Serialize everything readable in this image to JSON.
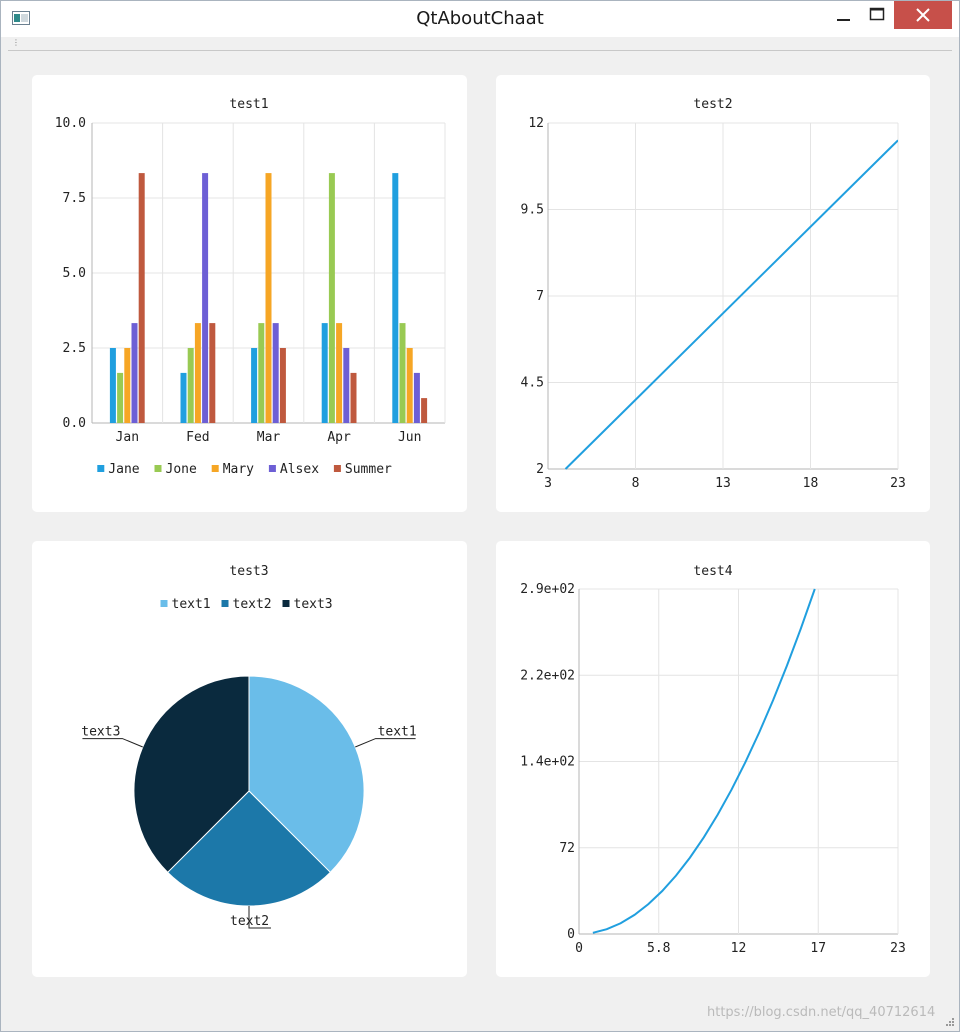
{
  "window": {
    "title": "QtAboutChaat",
    "watermark": "https://blog.csdn.net/qq_40712614"
  },
  "colors": {
    "series": [
      "#209fdf",
      "#99ca53",
      "#f6a625",
      "#6d5fd5",
      "#bf593e"
    ],
    "pie": [
      "#6abde9",
      "#1c78a9",
      "#0a2a3e"
    ],
    "line": "#209fdf",
    "close": "#c7504a"
  },
  "charts": [
    {
      "type": "bar",
      "title": "test1",
      "categories": [
        "Jan",
        "Fed",
        "Mar",
        "Apr",
        "Jun"
      ],
      "series": [
        {
          "name": "Jane",
          "values": [
            2.5,
            1.67,
            2.5,
            3.33,
            8.33
          ]
        },
        {
          "name": "Jone",
          "values": [
            1.67,
            2.5,
            3.33,
            8.33,
            3.33
          ]
        },
        {
          "name": "Mary",
          "values": [
            2.5,
            3.33,
            8.33,
            3.33,
            2.5
          ]
        },
        {
          "name": "Alsex",
          "values": [
            3.33,
            8.33,
            3.33,
            2.5,
            1.67
          ]
        },
        {
          "name": "Summer",
          "values": [
            8.33,
            3.33,
            2.5,
            1.67,
            0.83
          ]
        }
      ],
      "y_ticks": [
        "10.0",
        "7.5",
        "5.0",
        "2.5",
        "0.0"
      ],
      "ylim": [
        0,
        10
      ],
      "grid": true,
      "legend": "bottom"
    },
    {
      "type": "line",
      "title": "test2",
      "x": [
        4,
        23
      ],
      "y": [
        2,
        11.5
      ],
      "x_ticks": [
        "3",
        "8",
        "13",
        "18",
        "23"
      ],
      "y_ticks": [
        "12",
        "9.5",
        "7",
        "4.5",
        "2"
      ],
      "xlim": [
        3,
        23
      ],
      "ylim": [
        2,
        12
      ],
      "grid": true
    },
    {
      "type": "pie",
      "title": "test3",
      "slices": [
        {
          "label": "text1",
          "value": 0.375
        },
        {
          "label": "text2",
          "value": 0.25
        },
        {
          "label": "text3",
          "value": 0.375
        }
      ],
      "legend": "top"
    },
    {
      "type": "line",
      "title": "test4",
      "x": [
        1,
        2,
        3,
        4,
        5,
        6,
        7,
        8,
        9,
        10,
        11,
        12,
        13,
        14,
        15,
        16,
        17
      ],
      "y": [
        1,
        4,
        9,
        16,
        25,
        36,
        49,
        64,
        81,
        100,
        121,
        144,
        169,
        196,
        225,
        256,
        289
      ],
      "x_ticks": [
        "0",
        "5.8",
        "12",
        "17",
        "23"
      ],
      "y_ticks": [
        "2.9e+02",
        "2.2e+02",
        "1.4e+02",
        "72",
        "0"
      ],
      "xlim": [
        0,
        23
      ],
      "ylim": [
        0,
        289
      ],
      "grid": true
    }
  ],
  "chart_data": [
    {
      "type": "bar",
      "title": "test1",
      "categories": [
        "Jan",
        "Fed",
        "Mar",
        "Apr",
        "Jun"
      ],
      "series": [
        {
          "name": "Jane",
          "values": [
            2.5,
            1.67,
            2.5,
            3.33,
            8.33
          ]
        },
        {
          "name": "Jone",
          "values": [
            1.67,
            2.5,
            3.33,
            8.33,
            3.33
          ]
        },
        {
          "name": "Mary",
          "values": [
            2.5,
            3.33,
            8.33,
            3.33,
            2.5
          ]
        },
        {
          "name": "Alsex",
          "values": [
            3.33,
            8.33,
            3.33,
            2.5,
            1.67
          ]
        },
        {
          "name": "Summer",
          "values": [
            8.33,
            3.33,
            2.5,
            1.67,
            0.83
          ]
        }
      ],
      "ylim": [
        0,
        10
      ]
    },
    {
      "type": "line",
      "title": "test2",
      "x": [
        4,
        23
      ],
      "y": [
        2,
        11.5
      ],
      "xlim": [
        3,
        23
      ],
      "ylim": [
        2,
        12
      ]
    },
    {
      "type": "pie",
      "title": "test3",
      "labels": [
        "text1",
        "text2",
        "text3"
      ],
      "values": [
        0.375,
        0.25,
        0.375
      ]
    },
    {
      "type": "line",
      "title": "test4",
      "x": [
        1,
        17
      ],
      "y": [
        1,
        289
      ],
      "xlim": [
        0,
        23
      ],
      "ylim": [
        0,
        289
      ]
    }
  ]
}
